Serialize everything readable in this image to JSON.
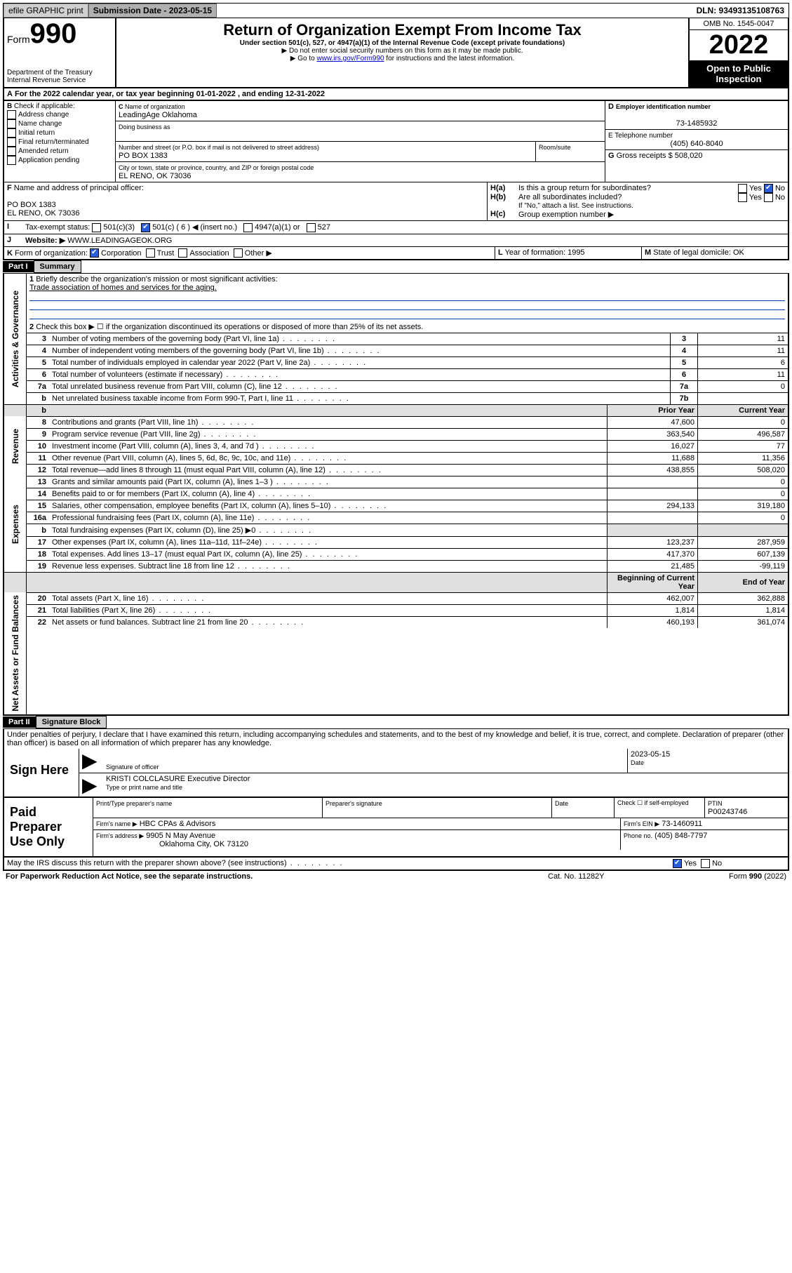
{
  "topbar": {
    "efile": "efile GRAPHIC print",
    "sub_label": "Submission Date - 2023-05-15",
    "dln": "DLN: 93493135108763"
  },
  "header": {
    "form_word": "Form",
    "form_no": "990",
    "dept": "Department of the Treasury",
    "irs": "Internal Revenue Service",
    "title": "Return of Organization Exempt From Income Tax",
    "subtitle": "Under section 501(c), 527, or 4947(a)(1) of the Internal Revenue Code (except private foundations)",
    "note1": "▶ Do not enter social security numbers on this form as it may be made public.",
    "note2_pre": "▶ Go to ",
    "note2_link": "www.irs.gov/Form990",
    "note2_post": " for instructions and the latest information.",
    "omb": "OMB No. 1545-0047",
    "year": "2022",
    "open": "Open to Public Inspection"
  },
  "A": {
    "text": "For the 2022 calendar year, or tax year beginning 01-01-2022    , and ending 12-31-2022"
  },
  "B": {
    "label": "Check if applicable:",
    "opts": [
      "Address change",
      "Name change",
      "Initial return",
      "Final return/terminated",
      "Amended return",
      "Application pending"
    ]
  },
  "C": {
    "name_lbl": "Name of organization",
    "name": "LeadingAge Oklahoma",
    "dba_lbl": "Doing business as",
    "addr_lbl": "Number and street (or P.O. box if mail is not delivered to street address)",
    "room_lbl": "Room/suite",
    "addr": "PO BOX 1383",
    "city_lbl": "City or town, state or province, country, and ZIP or foreign postal code",
    "city": "EL RENO, OK  73036"
  },
  "D": {
    "lbl": "Employer identification number",
    "val": "73-1485932"
  },
  "E": {
    "lbl": "E Telephone number",
    "val": "(405) 640-8040"
  },
  "G": {
    "lbl": "Gross receipts $",
    "val": "508,020"
  },
  "F": {
    "lbl": "Name and address of principal officer:",
    "l1": "PO BOX 1383",
    "l2": "EL RENO, OK  73036"
  },
  "H": {
    "a": "Is this a group return for subordinates?",
    "b": "Are all subordinates included?",
    "b_note": "If \"No,\" attach a list. See instructions.",
    "c": "Group exemption number ▶",
    "yes": "Yes",
    "no": "No"
  },
  "I": {
    "lbl": "Tax-exempt status:",
    "o1": "501(c)(3)",
    "o2": "501(c) ( 6 ) ◀ (insert no.)",
    "o3": "4947(a)(1) or",
    "o4": "527"
  },
  "J": {
    "lbl": "Website: ▶",
    "val": "WWW.LEADINGAGEOK.ORG"
  },
  "K": {
    "lbl": "Form of organization:",
    "opts": [
      "Corporation",
      "Trust",
      "Association",
      "Other ▶"
    ]
  },
  "L": {
    "lbl": "Year of formation:",
    "val": "1995"
  },
  "M": {
    "lbl": "State of legal domicile:",
    "val": "OK"
  },
  "part1": {
    "hdr": "Part I",
    "title": "Summary",
    "l1": "Briefly describe the organization's mission or most significant activities:",
    "l1v": "Trade association of homes and services for the aging.",
    "l2": "Check this box ▶ ☐  if the organization discontinued its operations or disposed of more than 25% of its net assets.",
    "rows_gov": [
      {
        "n": "3",
        "t": "Number of voting members of the governing body (Part VI, line 1a)",
        "box": "3",
        "v": "11"
      },
      {
        "n": "4",
        "t": "Number of independent voting members of the governing body (Part VI, line 1b)",
        "box": "4",
        "v": "11"
      },
      {
        "n": "5",
        "t": "Total number of individuals employed in calendar year 2022 (Part V, line 2a)",
        "box": "5",
        "v": "6"
      },
      {
        "n": "6",
        "t": "Total number of volunteers (estimate if necessary)",
        "box": "6",
        "v": "11"
      },
      {
        "n": "7a",
        "t": "Total unrelated business revenue from Part VIII, column (C), line 12",
        "box": "7a",
        "v": "0"
      },
      {
        "n": "b",
        "t": "Net unrelated business taxable income from Form 990-T, Part I, line 11",
        "box": "7b",
        "v": ""
      }
    ],
    "col_py": "Prior Year",
    "col_cy": "Current Year",
    "rows_rev": [
      {
        "n": "8",
        "t": "Contributions and grants (Part VIII, line 1h)",
        "py": "47,600",
        "cy": "0"
      },
      {
        "n": "9",
        "t": "Program service revenue (Part VIII, line 2g)",
        "py": "363,540",
        "cy": "496,587"
      },
      {
        "n": "10",
        "t": "Investment income (Part VIII, column (A), lines 3, 4, and 7d )",
        "py": "16,027",
        "cy": "77"
      },
      {
        "n": "11",
        "t": "Other revenue (Part VIII, column (A), lines 5, 6d, 8c, 9c, 10c, and 11e)",
        "py": "11,688",
        "cy": "11,356"
      },
      {
        "n": "12",
        "t": "Total revenue—add lines 8 through 11 (must equal Part VIII, column (A), line 12)",
        "py": "438,855",
        "cy": "508,020"
      }
    ],
    "rows_exp": [
      {
        "n": "13",
        "t": "Grants and similar amounts paid (Part IX, column (A), lines 1–3 )",
        "py": "",
        "cy": "0"
      },
      {
        "n": "14",
        "t": "Benefits paid to or for members (Part IX, column (A), line 4)",
        "py": "",
        "cy": "0"
      },
      {
        "n": "15",
        "t": "Salaries, other compensation, employee benefits (Part IX, column (A), lines 5–10)",
        "py": "294,133",
        "cy": "319,180"
      },
      {
        "n": "16a",
        "t": "Professional fundraising fees (Part IX, column (A), line 11e)",
        "py": "",
        "cy": "0"
      },
      {
        "n": "b",
        "t": "Total fundraising expenses (Part IX, column (D), line 25) ▶0",
        "py": "",
        "cy": ""
      },
      {
        "n": "17",
        "t": "Other expenses (Part IX, column (A), lines 11a–11d, 11f–24e)",
        "py": "123,237",
        "cy": "287,959"
      },
      {
        "n": "18",
        "t": "Total expenses. Add lines 13–17 (must equal Part IX, column (A), line 25)",
        "py": "417,370",
        "cy": "607,139"
      },
      {
        "n": "19",
        "t": "Revenue less expenses. Subtract line 18 from line 12",
        "py": "21,485",
        "cy": "-99,119"
      }
    ],
    "col_bcy": "Beginning of Current Year",
    "col_eoy": "End of Year",
    "rows_net": [
      {
        "n": "20",
        "t": "Total assets (Part X, line 16)",
        "py": "462,007",
        "cy": "362,888"
      },
      {
        "n": "21",
        "t": "Total liabilities (Part X, line 26)",
        "py": "1,814",
        "cy": "1,814"
      },
      {
        "n": "22",
        "t": "Net assets or fund balances. Subtract line 21 from line 20",
        "py": "460,193",
        "cy": "361,074"
      }
    ],
    "side_gov": "Activities & Governance",
    "side_rev": "Revenue",
    "side_exp": "Expenses",
    "side_net": "Net Assets or Fund Balances"
  },
  "part2": {
    "hdr": "Part II",
    "title": "Signature Block",
    "decl": "Under penalties of perjury, I declare that I have examined this return, including accompanying schedules and statements, and to the best of my knowledge and belief, it is true, correct, and complete. Declaration of preparer (other than officer) is based on all information of which preparer has any knowledge.",
    "sign_here": "Sign Here",
    "sig_officer": "Signature of officer",
    "date": "Date",
    "date_v": "2023-05-15",
    "name_title": "KRISTI COLCLASURE  Executive Director",
    "name_title_lbl": "Type or print name and title",
    "paid": "Paid Preparer Use Only",
    "pt_name": "Print/Type preparer's name",
    "pt_sig": "Preparer's signature",
    "pt_date": "Date",
    "pt_check": "Check ☐ if self-employed",
    "ptin_lbl": "PTIN",
    "ptin": "P00243746",
    "firm_name_lbl": "Firm's name    ▶",
    "firm_name": "HBC CPAs & Advisors",
    "firm_ein_lbl": "Firm's EIN ▶",
    "firm_ein": "73-1460911",
    "firm_addr_lbl": "Firm's address ▶",
    "firm_addr1": "9905 N May Avenue",
    "firm_addr2": "Oklahoma City, OK  73120",
    "phone_lbl": "Phone no.",
    "phone": "(405) 848-7797",
    "discuss": "May the IRS discuss this return with the preparer shown above? (see instructions)",
    "paperwork": "For Paperwork Reduction Act Notice, see the separate instructions.",
    "cat": "Cat. No. 11282Y",
    "formfoot": "Form 990 (2022)"
  }
}
